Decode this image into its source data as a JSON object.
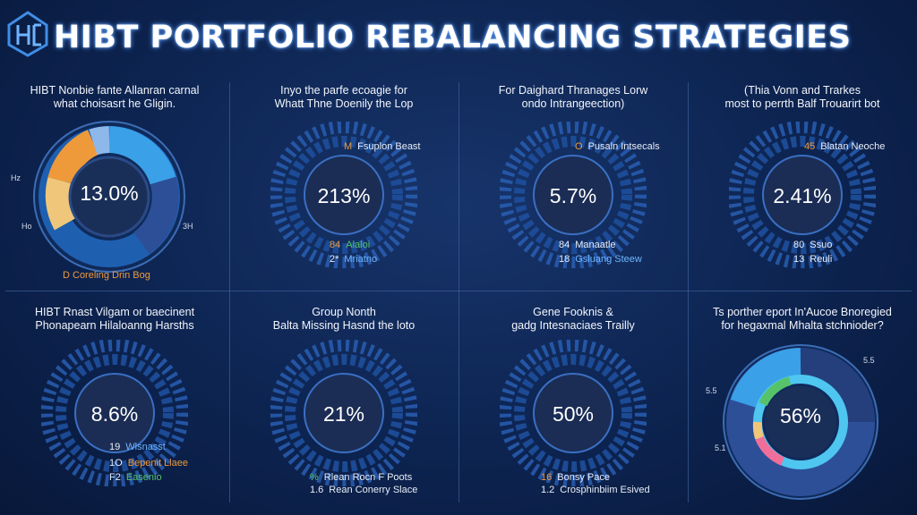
{
  "header": {
    "title": "HIBT PORTFOLIO REBALANCING STRATEGIES"
  },
  "panels": [
    {
      "title_line1": "HIBT Nonbie fante Allanran carnal",
      "title_line2": "what choisasrt he Gligin.",
      "center": "13.0%",
      "legend1": "D Coreling Drin Bog",
      "side_left": "Hz",
      "side_left2": "Ho",
      "side_right": "3H"
    },
    {
      "title_line1": "Inyo the parfe ecoagie for",
      "title_line2": "Whatt Thne Doenily the Lop",
      "center": "213%",
      "legend_top_n": "M",
      "legend_top": "Fsuplon Beast",
      "legend1_n": "84",
      "legend1": "Alaloi",
      "legend2_n": "2*",
      "legend2": "Mriatno"
    },
    {
      "title_line1": "For Daighard Thranages Lorw",
      "title_line2": "ondo Intrangeection)",
      "center": "5.7%",
      "legend_top_n": "O",
      "legend_top": "Pusaln Intsecals",
      "legend1_n": "84",
      "legend1": "Manaatle",
      "legend2_n": "18",
      "legend2": "Gsluang Steew"
    },
    {
      "title_line1": "(Thia Vonn and Trarkes",
      "title_line2": "most to perrth Balf Trouarirt bot",
      "center": "2.41%",
      "legend_top_n": "45",
      "legend_top": "Blatan Neoche",
      "legend1_n": "80",
      "legend1": "Ssuo",
      "legend2_n": "13",
      "legend2": "Reuli"
    },
    {
      "title_line1": "HIBT Rnast Vilgam or baecinent",
      "title_line2": "Phonapearn Hilaloanng Harsths",
      "center": "8.6%",
      "legend1_n": "19",
      "legend1": "Wlsnasst",
      "legend2_n": "1O",
      "legend2": "Bepenit Llaee",
      "legend3_n": "F2",
      "legend3": "Easenio"
    },
    {
      "title_line1": "Group Nonth",
      "title_line2": "Balta Missing Hasnd the loto",
      "center": "21%",
      "legend1_n": "%",
      "legend1": "Rlean Rocn F Poots",
      "legend2_n": "1.6",
      "legend2": "Rean Conerry Slace"
    },
    {
      "title_line1": "Gene Fooknis &",
      "title_line2": "gadg Intesnaciaes Trailly",
      "center": "50%",
      "legend1_n": "16",
      "legend1": "Bonsy Pace",
      "legend2_n": "1.2",
      "legend2": "Crosphinbiim Esived"
    },
    {
      "title_line1": "Ts porther eport In'Aucoe Bnoregied",
      "title_line2": "for hegaxmal Mhalta stchnioder?",
      "center": "56%",
      "side_left": "5.5",
      "side_left2": "5.1",
      "side_right": "5.5"
    }
  ],
  "colors": {
    "accent": "#2f8de0",
    "blue_dark": "#243f7c",
    "orange": "#ee9a3a",
    "sand": "#f0c77a",
    "green": "#56c26a",
    "pink": "#ef6f9a",
    "cyan": "#4ec6f0"
  }
}
